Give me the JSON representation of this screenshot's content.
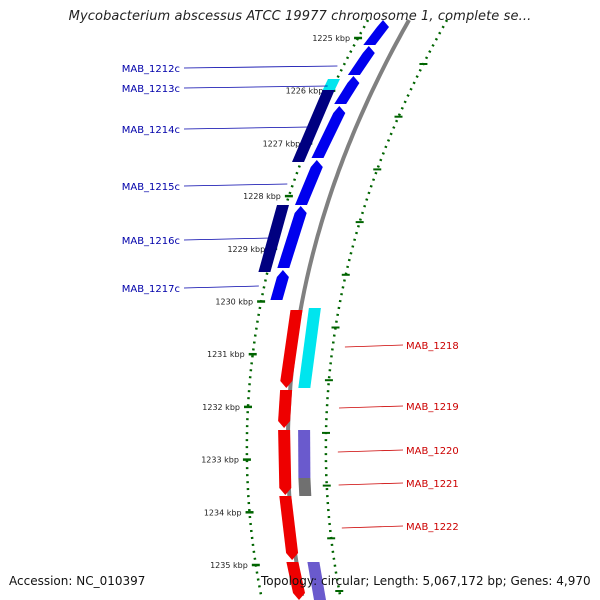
{
  "title": "Mycobacterium abscessus ATCC 19977 chromosome 1, complete se...",
  "footer": {
    "accession": "Accession: NC_010397",
    "stats": "Topology: circular; Length: 5,067,172 bp; Genes: 4,970"
  },
  "colors": {
    "forward_cds": "#0000ee",
    "forward_cds_dark": "#000080",
    "reverse_cds": "#ee0000",
    "feature_cyan": "#00e5ee",
    "feature_slate": "#6a5acd",
    "feature_gray": "#707070",
    "backbone": "#808080",
    "tick": "#006400",
    "left_label": "#0000aa",
    "right_label": "#cc0000"
  },
  "scale_unit": "kbp",
  "ticks": [
    {
      "kbp": 1225,
      "label": "1225 kbp"
    },
    {
      "kbp": 1226,
      "label": "1226 kbp"
    },
    {
      "kbp": 1227,
      "label": "1227 kbp"
    },
    {
      "kbp": 1228,
      "label": "1228 kbp"
    },
    {
      "kbp": 1229,
      "label": "1229 kbp"
    },
    {
      "kbp": 1230,
      "label": "1230 kbp"
    },
    {
      "kbp": 1231,
      "label": "1231 kbp"
    },
    {
      "kbp": 1232,
      "label": "1232 kbp"
    },
    {
      "kbp": 1233,
      "label": "1233 kbp"
    },
    {
      "kbp": 1234,
      "label": "1234 kbp"
    },
    {
      "kbp": 1235,
      "label": "1235 kbp"
    }
  ],
  "gene_labels_left": [
    "MAB_1212c",
    "MAB_1213c",
    "MAB_1214c",
    "MAB_1215c",
    "MAB_1216c",
    "MAB_1217c"
  ],
  "gene_labels_right": [
    "MAB_1218",
    "MAB_1219",
    "MAB_1220",
    "MAB_1221",
    "MAB_1222"
  ]
}
